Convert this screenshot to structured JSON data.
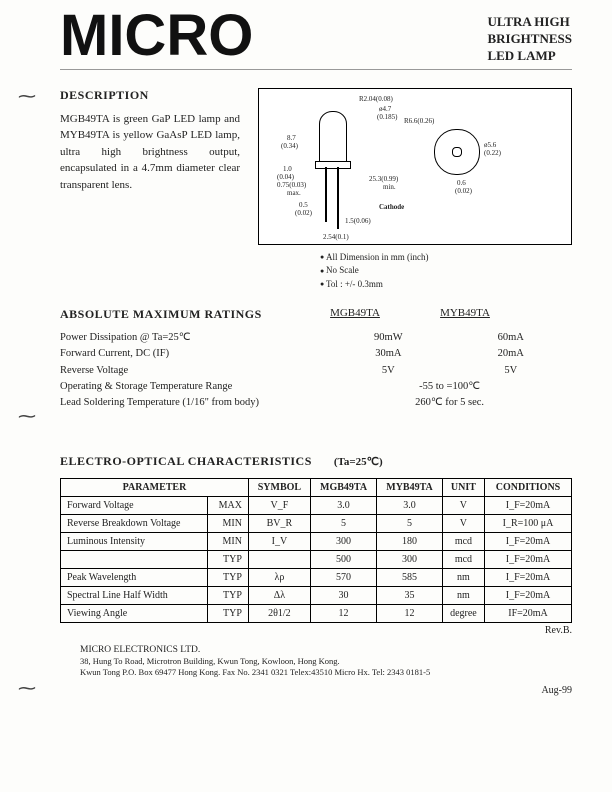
{
  "header": {
    "logo": "MICRO",
    "title_l1": "ULTRA HIGH",
    "title_l2": "BRIGHTNESS",
    "title_l3": "LED LAMP"
  },
  "description": {
    "heading": "DESCRIPTION",
    "text": "MGB49TA is green GaP LED lamp and MYB49TA is yellow GaAsP LED lamp, ultra high brightness output, encapsulated in a 4.7mm diameter clear transparent lens."
  },
  "diagram": {
    "d1": "R2.04(0.08)",
    "d2": "ø4.7",
    "d2b": "(0.185)",
    "d3": "R6.6(0.26)",
    "d4": "8.7",
    "d4b": "(0.34)",
    "d5": "ø5.6",
    "d5b": "(0.22)",
    "d6": "1.0",
    "d6b": "(0.04)",
    "d7": "0.75(0.03)",
    "d7b": "max.",
    "d8": "25.3(0.99)",
    "d8b": "min.",
    "d9": "0.6",
    "d9b": "(0.02)",
    "d10": "0.5",
    "d10b": "(0.02)",
    "d11": "Cathode",
    "d12": "1.5(0.06)",
    "d13": "2.54(0.1)"
  },
  "notes": {
    "n1": "All Dimension in mm (inch)",
    "n2": "No Scale",
    "n3": "Tol : +/- 0.3mm"
  },
  "ratings": {
    "heading": "ABSOLUTE MAXIMUM RATINGS",
    "cols": [
      "MGB49TA",
      "MYB49TA"
    ],
    "rows": [
      {
        "label": "Power Dissipation @ Ta=25℃",
        "a": "90mW",
        "b": "60mA"
      },
      {
        "label": "Forward Current, DC (IF)",
        "a": "30mA",
        "b": "20mA"
      },
      {
        "label": "Reverse Voltage",
        "a": "5V",
        "b": "5V"
      },
      {
        "label": "Operating & Storage Temperature Range",
        "span": "-55 to =100℃"
      },
      {
        "label": "Lead Soldering Temperature (1/16\" from body)",
        "span": "260℃ for 5 sec."
      }
    ]
  },
  "eo": {
    "heading": "ELECTRO-OPTICAL CHARACTERISTICS",
    "cond": "(Ta=25℃)",
    "headers": [
      "PARAMETER",
      "SYMBOL",
      "MGB49TA",
      "MYB49TA",
      "UNIT",
      "CONDITIONS"
    ],
    "rows": [
      {
        "p": "Forward Voltage",
        "mm": "MAX",
        "s": "V_F",
        "a": "3.0",
        "b": "3.0",
        "u": "V",
        "c": "I_F=20mA"
      },
      {
        "p": "Reverse Breakdown Voltage",
        "mm": "MIN",
        "s": "BV_R",
        "a": "5",
        "b": "5",
        "u": "V",
        "c": "I_R=100 μA"
      },
      {
        "p": "Luminous Intensity",
        "mm": "MIN",
        "s": "I_V",
        "a": "300",
        "b": "180",
        "u": "mcd",
        "c": "I_F=20mA"
      },
      {
        "p": "",
        "mm": "TYP",
        "s": "",
        "a": "500",
        "b": "300",
        "u": "mcd",
        "c": "I_F=20mA"
      },
      {
        "p": "Peak Wavelength",
        "mm": "TYP",
        "s": "λρ",
        "a": "570",
        "b": "585",
        "u": "nm",
        "c": "I_F=20mA"
      },
      {
        "p": "Spectral Line Half Width",
        "mm": "TYP",
        "s": "Δλ",
        "a": "30",
        "b": "35",
        "u": "nm",
        "c": "I_F=20mA"
      },
      {
        "p": "Viewing Angle",
        "mm": "TYP",
        "s": "2θ1/2",
        "a": "12",
        "b": "12",
        "u": "degree",
        "c": "IF=20mA"
      }
    ],
    "rev": "Rev.B."
  },
  "footer": {
    "company": "MICRO ELECTRONICS LTD.",
    "addr1": "38, Hung To Road, Microtron Building, Kwun Tong, Kowloon, Hong Kong.",
    "addr2": "Kwun Tong P.O. Box 69477 Hong Kong. Fax No. 2341 0321  Telex:43510 Micro Hx.  Tel: 2343 0181-5",
    "date": "Aug-99"
  }
}
